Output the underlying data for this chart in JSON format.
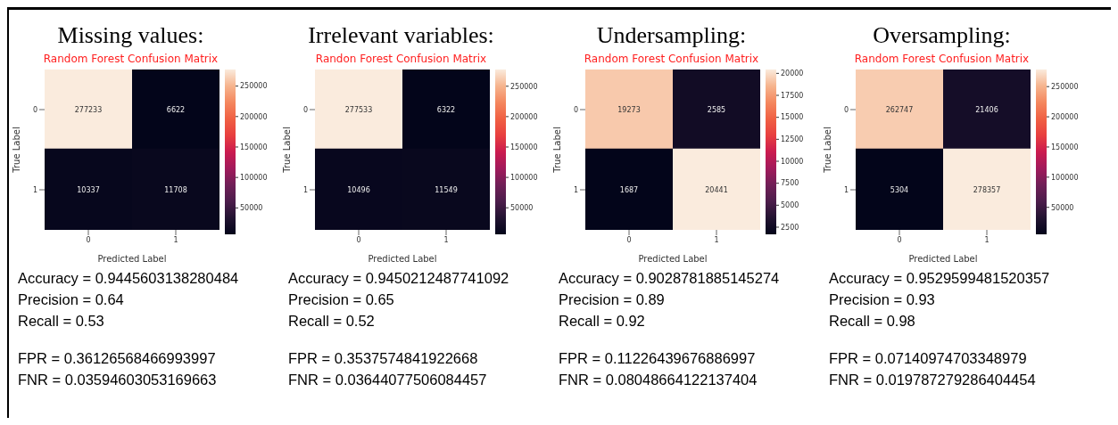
{
  "chart_data": [
    {
      "type": "heatmap",
      "title": "Missing values:",
      "subtitle": "Random Forest Confusion Matrix",
      "xlabel": "Predicted Label",
      "ylabel": "True Label",
      "categories": [
        "0",
        "1"
      ],
      "y_categories": [
        "0",
        "1"
      ],
      "cells": [
        [
          277233,
          6622
        ],
        [
          10337,
          11708
        ]
      ],
      "data_labels": true,
      "clim": [
        6622,
        277233
      ],
      "cticks": [
        50000,
        100000,
        150000,
        200000,
        250000
      ],
      "annotations": [
        "Accuracy = 0.9445603138280484",
        "Precision = 0.64",
        "Recall = 0.53",
        "FPR = 0.36126568466993997",
        "FNR = 0.03594603053169663"
      ]
    },
    {
      "type": "heatmap",
      "title": "Irrelevant variables:",
      "subtitle": "Randon Forest Confusion Matrix",
      "xlabel": "Predicted Label",
      "ylabel": "True Label",
      "categories": [
        "0",
        "1"
      ],
      "y_categories": [
        "0",
        "1"
      ],
      "cells": [
        [
          277533,
          6322
        ],
        [
          10496,
          11549
        ]
      ],
      "data_labels": true,
      "clim": [
        6322,
        277533
      ],
      "cticks": [
        50000,
        100000,
        150000,
        200000,
        250000
      ],
      "annotations": [
        "Accuracy = 0.9450212487741092",
        "Precision = 0.65",
        "Recall = 0.52",
        "FPR = 0.3537574841922668",
        "FNR = 0.03644077506084457"
      ]
    },
    {
      "type": "heatmap",
      "title": "Undersampling:",
      "subtitle": "Random Forest Confusion Matrix",
      "xlabel": "Predicted Label",
      "ylabel": "True Label",
      "categories": [
        "0",
        "1"
      ],
      "y_categories": [
        "0",
        "1"
      ],
      "cells": [
        [
          19273,
          2585
        ],
        [
          1687,
          20441
        ]
      ],
      "data_labels": true,
      "clim": [
        1687,
        20441
      ],
      "cticks": [
        2500,
        5000,
        7500,
        10000,
        12500,
        15000,
        17500,
        20000
      ],
      "annotations": [
        "Accuracy = 0.9028781885145274",
        "Precision = 0.89",
        "Recall = 0.92",
        "FPR = 0.11226439676886997",
        "FNR = 0.08048664122137404"
      ]
    },
    {
      "type": "heatmap",
      "title": "Oversampling:",
      "subtitle": "Random Forest Confusion Matrix",
      "xlabel": "Predicted Label",
      "ylabel": "True Label",
      "categories": [
        "0",
        "1"
      ],
      "y_categories": [
        "0",
        "1"
      ],
      "cells": [
        [
          262747,
          21406
        ],
        [
          5304,
          278357
        ]
      ],
      "data_labels": true,
      "clim": [
        5304,
        278357
      ],
      "cticks": [
        50000,
        100000,
        150000,
        200000,
        250000
      ],
      "annotations": [
        "Accuracy = 0.9529599481520357",
        "Precision = 0.93",
        "Recall = 0.98",
        "FPR = 0.07140974703348979",
        "FNR = 0.019787279286404454"
      ]
    }
  ]
}
